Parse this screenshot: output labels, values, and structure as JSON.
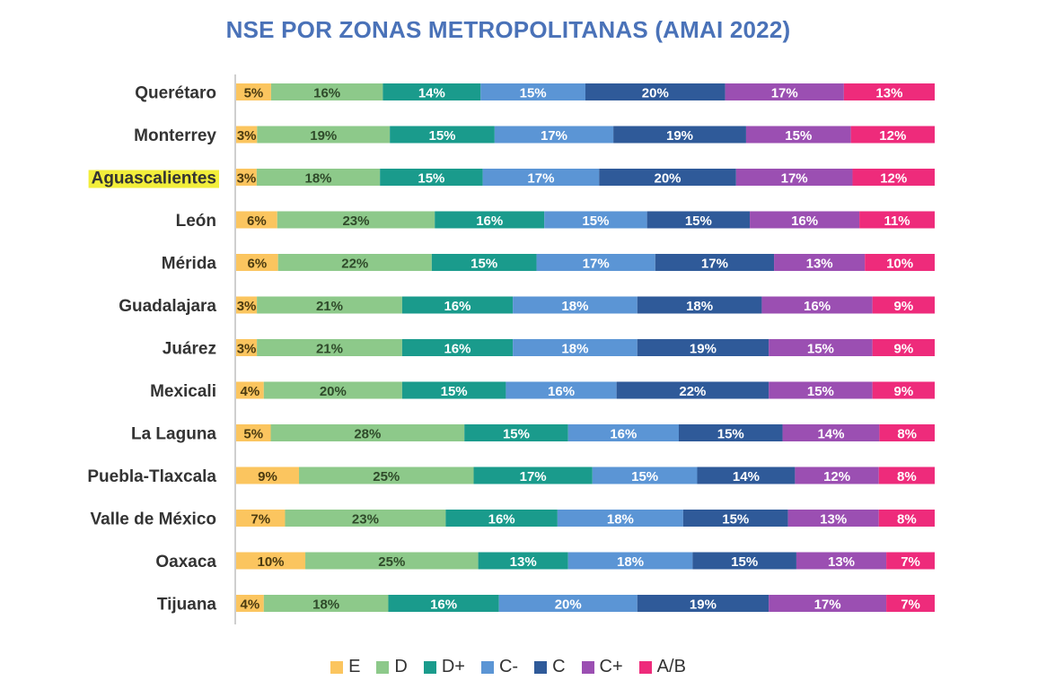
{
  "chart_data": {
    "type": "bar",
    "orientation": "horizontal",
    "stacked": true,
    "percent": true,
    "title": "NSE POR ZONAS METROPOLITANAS (AMAI 2022)",
    "categories": [
      "Querétaro",
      "Monterrey",
      "Aguascalientes",
      "León",
      "Mérida",
      "Guadalajara",
      "Juárez",
      "Mexicali",
      "La Laguna",
      "Puebla-Tlaxcala",
      "Valle de México",
      "Oaxaca",
      "Tijuana"
    ],
    "highlighted_category": "Aguascalientes",
    "highlight_color": "#f2ee3a",
    "series": [
      {
        "name": "E",
        "color": "#fbc55f",
        "label_color": "#4a3a10",
        "values": [
          5,
          3,
          3,
          6,
          6,
          3,
          3,
          4,
          5,
          9,
          7,
          10,
          4
        ]
      },
      {
        "name": "D",
        "color": "#8dc98a",
        "label_color": "#2f4a2a",
        "values": [
          16,
          19,
          18,
          23,
          22,
          21,
          21,
          20,
          28,
          25,
          23,
          25,
          18
        ]
      },
      {
        "name": "D+",
        "color": "#1a9b8c",
        "label_color": "#ffffff",
        "values": [
          14,
          15,
          15,
          16,
          15,
          16,
          16,
          15,
          15,
          17,
          16,
          13,
          16
        ]
      },
      {
        "name": "C-",
        "color": "#5b95d5",
        "label_color": "#ffffff",
        "values": [
          15,
          17,
          17,
          15,
          17,
          18,
          18,
          16,
          16,
          15,
          18,
          18,
          20
        ]
      },
      {
        "name": "C",
        "color": "#2f5a99",
        "label_color": "#ffffff",
        "values": [
          20,
          19,
          20,
          15,
          17,
          18,
          19,
          22,
          15,
          14,
          15,
          15,
          19
        ]
      },
      {
        "name": "C+",
        "color": "#9b4fb2",
        "label_color": "#ffffff",
        "values": [
          17,
          15,
          17,
          16,
          13,
          16,
          15,
          15,
          14,
          12,
          13,
          13,
          17
        ]
      },
      {
        "name": "A/B",
        "color": "#ee2b7b",
        "label_color": "#ffffff",
        "values": [
          13,
          12,
          12,
          11,
          10,
          9,
          9,
          9,
          8,
          8,
          8,
          7,
          7
        ]
      }
    ],
    "legend_position": "bottom",
    "grid": false
  }
}
